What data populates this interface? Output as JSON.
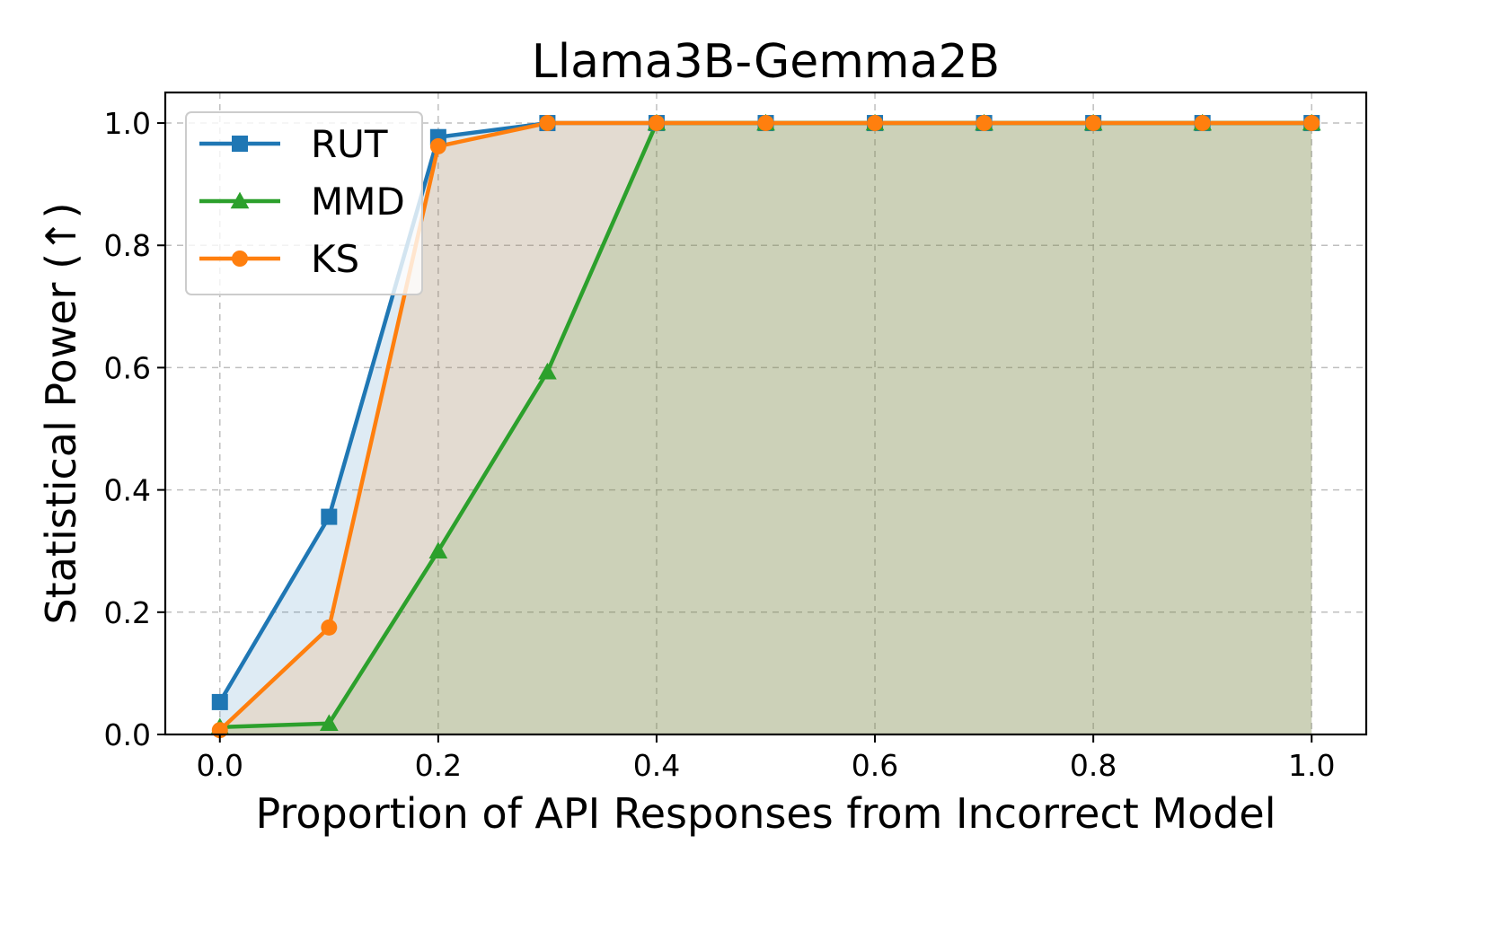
{
  "chart_data": {
    "type": "line",
    "title": "Llama3B-Gemma2B",
    "xlabel": "Proportion of API Responses from Incorrect Model",
    "ylabel": "Statistical Power (↑)",
    "xlim": [
      -0.05,
      1.05
    ],
    "ylim": [
      0.0,
      1.05
    ],
    "xticks": [
      0.0,
      0.2,
      0.4,
      0.6,
      0.8,
      1.0
    ],
    "xtick_labels": [
      "0.0",
      "0.2",
      "0.4",
      "0.6",
      "0.8",
      "1.0"
    ],
    "yticks": [
      0.0,
      0.2,
      0.4,
      0.6,
      0.8,
      1.0
    ],
    "ytick_labels": [
      "0.0",
      "0.2",
      "0.4",
      "0.6",
      "0.8",
      "1.0"
    ],
    "grid": true,
    "legend_position": "top-left",
    "x": [
      0.0,
      0.1,
      0.2,
      0.3,
      0.4,
      0.5,
      0.6,
      0.7,
      0.8,
      0.9,
      1.0
    ],
    "series": [
      {
        "name": "RUT",
        "color": "#1f77b4",
        "marker": "square",
        "fill": true,
        "values": [
          0.053,
          0.356,
          0.977,
          1.0,
          1.0,
          1.0,
          1.0,
          1.0,
          1.0,
          1.0,
          1.0
        ]
      },
      {
        "name": "MMD",
        "color": "#2ca02c",
        "marker": "triangle",
        "fill": true,
        "values": [
          0.012,
          0.018,
          0.3,
          0.593,
          1.0,
          1.0,
          1.0,
          1.0,
          1.0,
          1.0,
          1.0
        ]
      },
      {
        "name": "KS",
        "color": "#ff7f0e",
        "marker": "circle",
        "fill": true,
        "values": [
          0.007,
          0.175,
          0.962,
          1.0,
          1.0,
          1.0,
          1.0,
          1.0,
          1.0,
          1.0,
          1.0
        ]
      }
    ]
  }
}
